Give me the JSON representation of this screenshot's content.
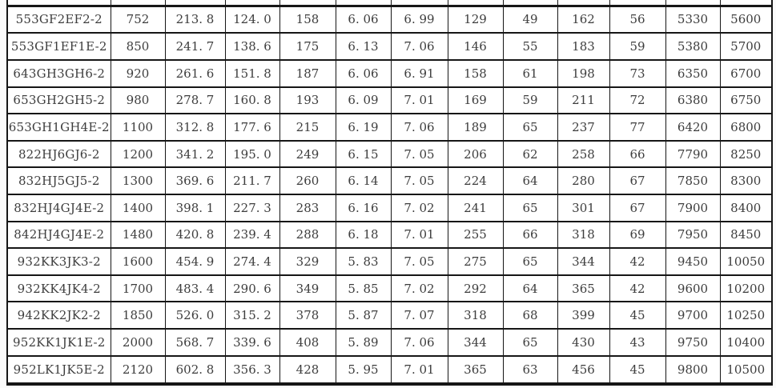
{
  "style": {
    "border_color": "#161616",
    "text_color": "#3d3d3d",
    "background": "#ffffff"
  },
  "table": {
    "header_visible": false,
    "note": "table cropped at top; no header row visible",
    "rows": [
      [
        "553GF2EF2-2",
        "752",
        "213. 8",
        "124. 0",
        "158",
        "6. 06",
        "6. 99",
        "129",
        "49",
        "162",
        "56",
        "5330",
        "5600"
      ],
      [
        "553GF1EF1E-2",
        "850",
        "241. 7",
        "138. 6",
        "175",
        "6. 13",
        "7. 06",
        "146",
        "55",
        "183",
        "59",
        "5380",
        "5700"
      ],
      [
        "643GH3GH6-2",
        "920",
        "261. 6",
        "151. 8",
        "187",
        "6. 06",
        "6. 91",
        "158",
        "61",
        "198",
        "73",
        "6350",
        "6700"
      ],
      [
        "653GH2GH5-2",
        "980",
        "278. 7",
        "160. 8",
        "193",
        "6. 09",
        "7. 01",
        "169",
        "59",
        "211",
        "72",
        "6380",
        "6750"
      ],
      [
        "653GH1GH4E-2",
        "1100",
        "312. 8",
        "177. 6",
        "215",
        "6. 19",
        "7. 06",
        "189",
        "65",
        "237",
        "77",
        "6420",
        "6800"
      ],
      [
        "822HJ6GJ6-2",
        "1200",
        "341. 2",
        "195. 0",
        "249",
        "6. 15",
        "7. 05",
        "206",
        "62",
        "258",
        "66",
        "7790",
        "8250"
      ],
      [
        "832HJ5GJ5-2",
        "1300",
        "369. 6",
        "211. 7",
        "260",
        "6. 14",
        "7. 05",
        "224",
        "64",
        "280",
        "67",
        "7850",
        "8300"
      ],
      [
        "832HJ4GJ4E-2",
        "1400",
        "398. 1",
        "227. 3",
        "283",
        "6. 16",
        "7. 02",
        "241",
        "65",
        "301",
        "67",
        "7900",
        "8400"
      ],
      [
        "842HJ4GJ4E-2",
        "1480",
        "420. 8",
        "239. 4",
        "288",
        "6. 18",
        "7. 01",
        "255",
        "66",
        "318",
        "69",
        "7950",
        "8450"
      ],
      [
        "932KK3JK3-2",
        "1600",
        "454. 9",
        "274. 4",
        "329",
        "5. 83",
        "7. 05",
        "275",
        "65",
        "344",
        "42",
        "9450",
        "10050"
      ],
      [
        "932KK4JK4-2",
        "1700",
        "483. 4",
        "290. 6",
        "349",
        "5. 85",
        "7. 02",
        "292",
        "64",
        "365",
        "42",
        "9600",
        "10200"
      ],
      [
        "942KK2JK2-2",
        "1850",
        "526. 0",
        "315. 2",
        "378",
        "5. 87",
        "7. 07",
        "318",
        "68",
        "399",
        "45",
        "9700",
        "10250"
      ],
      [
        "952KK1JK1E-2",
        "2000",
        "568. 7",
        "339. 6",
        "408",
        "5. 89",
        "7. 06",
        "344",
        "65",
        "430",
        "43",
        "9750",
        "10400"
      ],
      [
        "952LK1JK5E-2",
        "2120",
        "602. 8",
        "356. 3",
        "428",
        "5. 95",
        "7. 01",
        "365",
        "63",
        "456",
        "45",
        "9800",
        "10500"
      ]
    ]
  }
}
